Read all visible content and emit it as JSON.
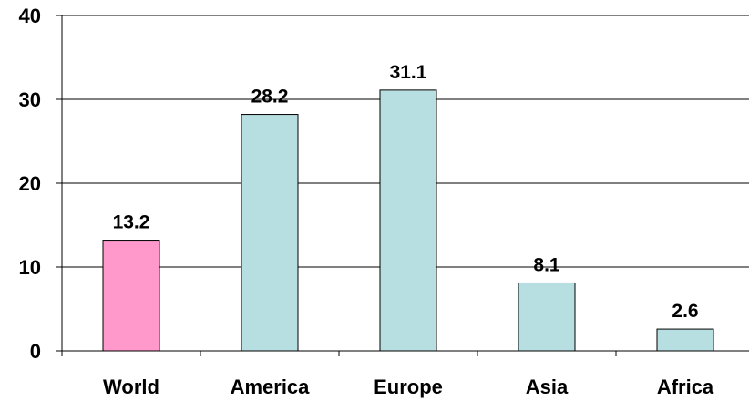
{
  "chart_data": {
    "type": "bar",
    "categories": [
      "World",
      "America",
      "Europe",
      "Asia",
      "Africa"
    ],
    "values": [
      13.2,
      28.2,
      31.1,
      8.1,
      2.6
    ],
    "data_labels": [
      "13.2",
      "28.2",
      "31.1",
      "8.1",
      "2.6"
    ],
    "title": "",
    "xlabel": "",
    "ylabel": "",
    "ylim": [
      0,
      40
    ],
    "yticks": [
      0,
      10,
      20,
      30,
      40
    ],
    "ytick_labels": [
      "0",
      "10",
      "20",
      "30",
      "40"
    ],
    "grid": true,
    "legend": "none",
    "colors": {
      "highlight_bar": "#FF99CC",
      "bar": "#B7DEE0",
      "bar_outline": "#000000",
      "gridline": "#000000",
      "axis": "#000000"
    },
    "highlight_index": 0
  }
}
